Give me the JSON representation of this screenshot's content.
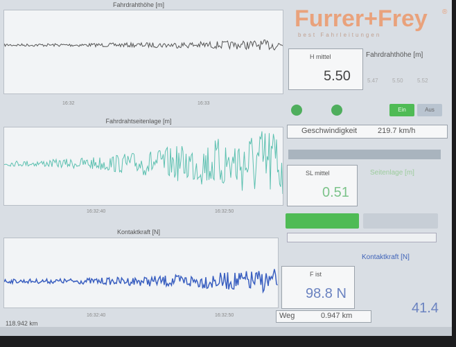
{
  "logo": {
    "name": "Furrer+Frey",
    "tagline": "best Fahrleitungen",
    "mark": "®"
  },
  "charts": [
    {
      "title": "Fahrdrahthöhe [m]",
      "times": [
        "16:32",
        "16:33"
      ]
    },
    {
      "title": "Fahrdrahtseitenlage [m]",
      "times": [
        "16:32:40",
        "16:32:50"
      ]
    },
    {
      "title": "Kontaktkraft [N]",
      "times": [
        "16:32:40",
        "16:32:50"
      ]
    }
  ],
  "height": {
    "label": "H mittel",
    "value": "5.50",
    "title": "Fahrdrahthöhe [m]",
    "stats": [
      "5.47",
      "5.50",
      "5.52"
    ]
  },
  "buttons": [
    "Ein",
    "Aus"
  ],
  "speed": {
    "label": "Geschwindigkeit",
    "value": "219.7 km/h"
  },
  "lateral": {
    "label": "SL mittel",
    "value": "0.51",
    "title": "Seitenlage [m]"
  },
  "force": {
    "title": "Kontaktkraft [N]",
    "label": "F ist",
    "value": "98.8 N",
    "extra": "41.4"
  },
  "distance": {
    "label": "Weg",
    "value": "0.947 km"
  },
  "odometer": "118.942 km"
}
